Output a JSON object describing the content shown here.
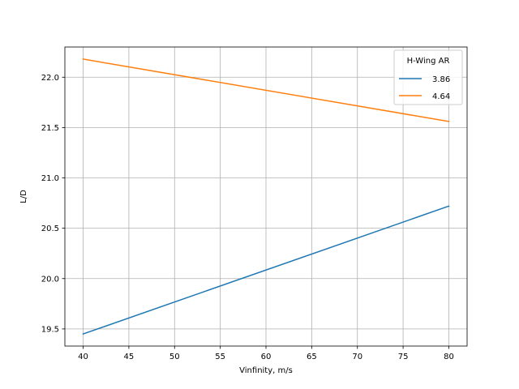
{
  "chart_data": {
    "type": "line",
    "title": "",
    "xlabel": "Vinfinity, m/s",
    "ylabel": "L/D",
    "xlim": [
      38,
      82
    ],
    "ylim": [
      19.33,
      22.3
    ],
    "x_ticks": [
      40,
      45,
      50,
      55,
      60,
      65,
      70,
      75,
      80
    ],
    "y_ticks": [
      19.5,
      20.0,
      20.5,
      21.0,
      21.5,
      22.0
    ],
    "x_tick_labels": [
      "40",
      "45",
      "50",
      "55",
      "60",
      "65",
      "70",
      "75",
      "80"
    ],
    "y_tick_labels": [
      "19.5",
      "20.0",
      "20.5",
      "21.0",
      "21.5",
      "22.0"
    ],
    "grid": true,
    "legend": {
      "title": "H-Wing AR",
      "placement": "top-right"
    },
    "series": [
      {
        "name": "3.86",
        "color": "#1f77b4",
        "x": [
          40,
          80
        ],
        "y": [
          19.45,
          20.72
        ]
      },
      {
        "name": "4.64",
        "color": "#ff7f0e",
        "x": [
          40,
          80
        ],
        "y": [
          22.18,
          21.56
        ]
      }
    ]
  }
}
